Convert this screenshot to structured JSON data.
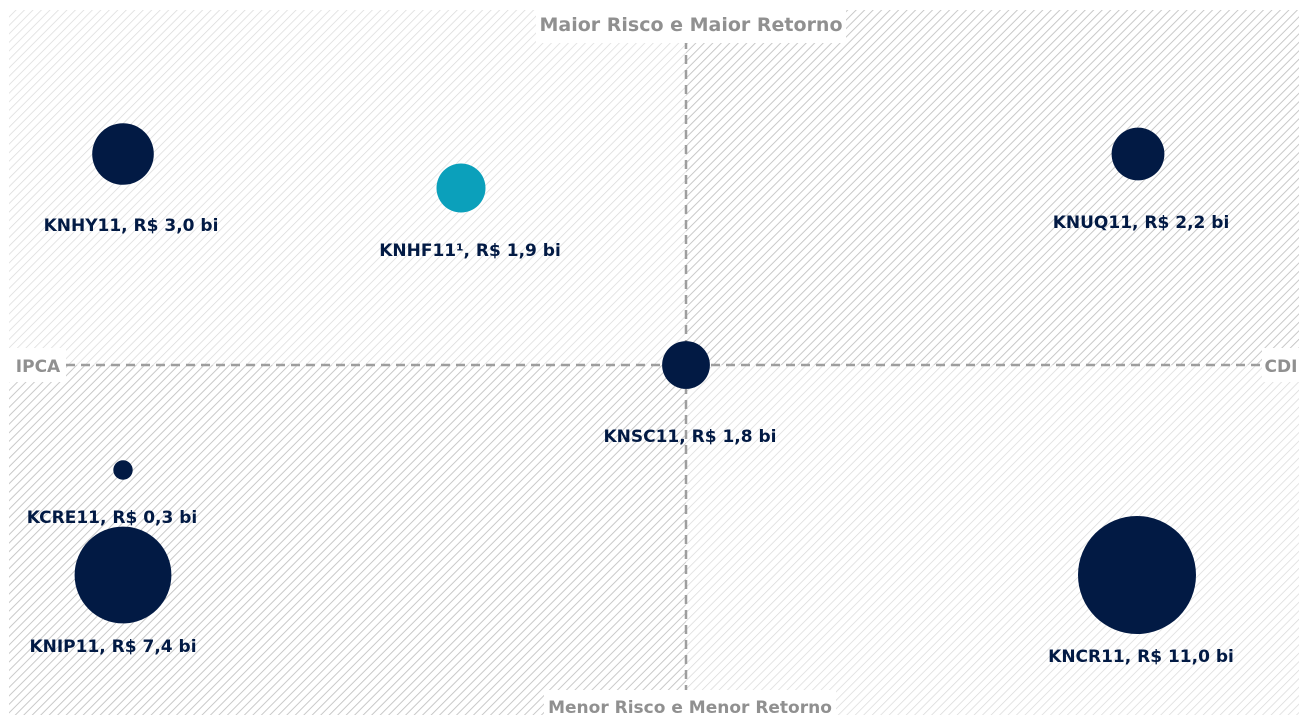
{
  "chart_data": {
    "type": "bubble-quadrant",
    "axis_labels": {
      "top": "Maior Risco e Maior Retorno",
      "bottom": "Menor Risco e Menor Retorno",
      "left": "IPCA",
      "right": "CDI"
    },
    "grid": false,
    "colors": {
      "primary": "#021a44",
      "highlight": "#0ba0bb"
    },
    "points": [
      {
        "label": "KNHY11, R$ 3,0 bi",
        "value": 3.0,
        "quadrant": "top-left",
        "color": "#021a44"
      },
      {
        "label": "KNHF11¹, R$ 1,9 bi",
        "value": 1.9,
        "quadrant": "top-left",
        "color": "#0ba0bb"
      },
      {
        "label": "KNUQ11, R$ 2,2 bi",
        "value": 2.2,
        "quadrant": "top-right",
        "color": "#021a44"
      },
      {
        "label": "KNSC11, R$ 1,8 bi",
        "value": 1.8,
        "quadrant": "center",
        "color": "#021a44"
      },
      {
        "label": "KCRE11, R$ 0,3 bi",
        "value": 0.3,
        "quadrant": "bottom-left",
        "color": "#021a44"
      },
      {
        "label": "KNIP11, R$ 7,4 bi",
        "value": 7.4,
        "quadrant": "bottom-left",
        "color": "#021a44"
      },
      {
        "label": "KNCR11, R$ 11,0 bi",
        "value": 11.0,
        "quadrant": "bottom-right",
        "color": "#021a44"
      }
    ]
  }
}
